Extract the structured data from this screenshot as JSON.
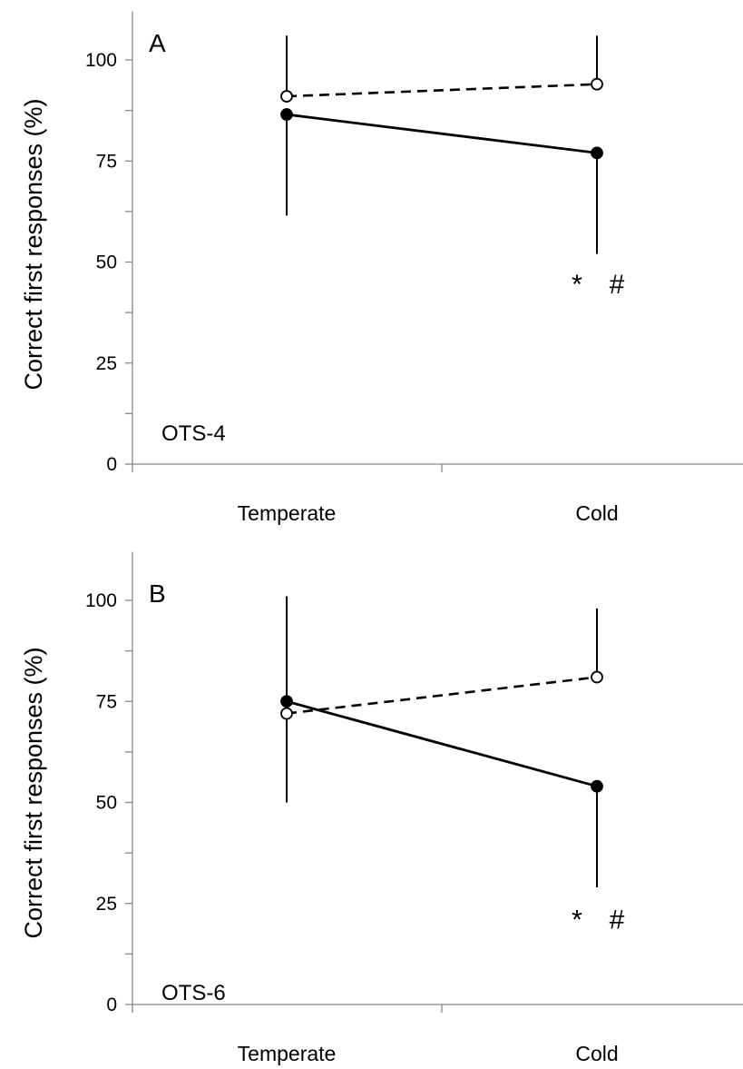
{
  "chart_data": [
    {
      "type": "line",
      "panel_letter": "A",
      "panel_tag": "OTS-4",
      "title": "",
      "xlabel": "",
      "ylabel": "Correct first responses (%)",
      "ylim": [
        0,
        112
      ],
      "yticks": [
        "0",
        "25",
        "50",
        "75",
        "100"
      ],
      "categories": [
        "Temperate",
        "Cold"
      ],
      "grid": false,
      "series": [
        {
          "style": "dashed, open circle markers",
          "marker_fill": "#ffffff",
          "values": [
            91,
            94
          ],
          "error_upper": [
            106,
            106
          ],
          "error_lower": [
            null,
            null
          ]
        },
        {
          "style": "solid, filled circle markers",
          "marker_fill": "#000000",
          "values": [
            86.5,
            77
          ],
          "error_upper": [
            null,
            null
          ],
          "error_lower": [
            61.5,
            52
          ]
        }
      ],
      "annotations": [
        {
          "text": "*",
          "category": "Cold",
          "y": 44.5,
          "offset": -1
        },
        {
          "text": "#",
          "category": "Cold",
          "y": 44.5,
          "offset": 1
        }
      ]
    },
    {
      "type": "line",
      "panel_letter": "B",
      "panel_tag": "OTS-6",
      "title": "",
      "xlabel": "",
      "ylabel": "Correct first responses (%)",
      "ylim": [
        0,
        112
      ],
      "yticks": [
        "0",
        "25",
        "50",
        "75",
        "100"
      ],
      "categories": [
        "Temperate",
        "Cold"
      ],
      "grid": false,
      "series": [
        {
          "style": "dashed, open circle markers",
          "marker_fill": "#ffffff",
          "values": [
            72,
            81
          ],
          "error_upper": [
            null,
            98
          ],
          "error_lower": [
            50,
            null
          ]
        },
        {
          "style": "solid, filled circle markers",
          "marker_fill": "#000000",
          "values": [
            75,
            54
          ],
          "error_upper": [
            101,
            null
          ],
          "error_lower": [
            null,
            29
          ]
        }
      ],
      "annotations": [
        {
          "text": "*",
          "category": "Cold",
          "y": 21,
          "offset": -1
        },
        {
          "text": "#",
          "category": "Cold",
          "y": 21,
          "offset": 1
        }
      ]
    }
  ]
}
